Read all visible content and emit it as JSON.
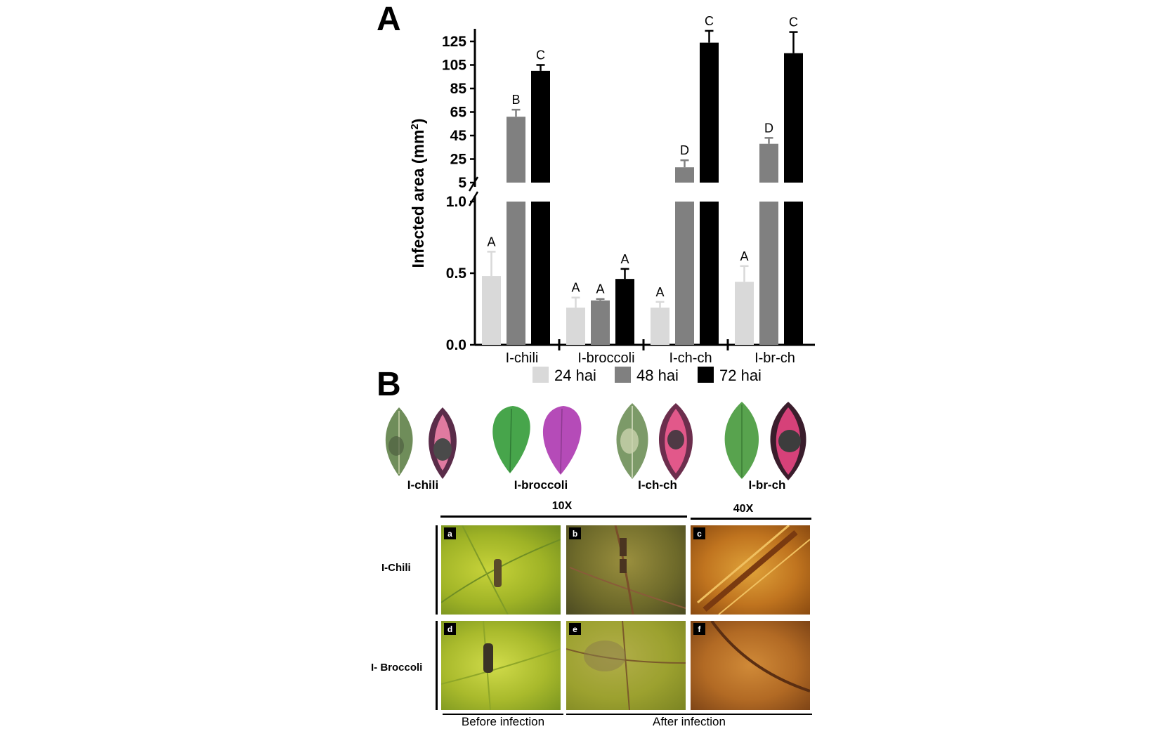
{
  "panels": {
    "a": "A",
    "b": "B"
  },
  "chart_data": {
    "type": "bar",
    "ylabel": "Infected area (mm",
    "ylabel_sup": "2",
    "ylabel_close": ")",
    "axis_break": true,
    "lower_segment": {
      "ylim": [
        0,
        1.0
      ],
      "ticks": [
        "0.0",
        "0.5",
        "1.0"
      ]
    },
    "upper_segment": {
      "ylim": [
        5,
        125
      ],
      "ticks": [
        "5",
        "25",
        "45",
        "65",
        "85",
        "105",
        "125"
      ]
    },
    "categories": [
      "I-chili",
      "I-broccoli",
      "I-ch-ch",
      "I-br-ch"
    ],
    "series": [
      {
        "name": "24 hai",
        "color": "#d9d9d9",
        "values": [
          0.48,
          0.26,
          0.26,
          0.44
        ],
        "errors": [
          0.17,
          0.07,
          0.04,
          0.11
        ],
        "letters": [
          "A",
          "A",
          "A",
          "A"
        ]
      },
      {
        "name": "48 hai",
        "color": "#808080",
        "values": [
          61,
          0.31,
          18,
          38
        ],
        "errors": [
          6,
          0.01,
          6,
          5
        ],
        "letters": [
          "B",
          "A",
          "D",
          "D"
        ]
      },
      {
        "name": "72 hai",
        "color": "#000000",
        "values": [
          100,
          0.46,
          124,
          115
        ],
        "errors": [
          5,
          0.07,
          10,
          18
        ],
        "letters": [
          "C",
          "A",
          "C",
          "C"
        ]
      }
    ],
    "legend_position": "bottom"
  },
  "leaves": {
    "labels": [
      "I-chili",
      "I-broccoli",
      "I-ch-ch",
      "I-br-ch"
    ]
  },
  "micrographs": {
    "magnification_10x": "10X",
    "magnification_40x": "40X",
    "rows": [
      "I-Chili",
      "I- Broccoli"
    ],
    "tiles": [
      "a",
      "b",
      "c",
      "d",
      "e",
      "f"
    ],
    "before": "Before infection",
    "after": "After infection"
  },
  "colors": {
    "bar_24": "#d9d9d9",
    "bar_48": "#808080",
    "bar_72": "#000000"
  }
}
